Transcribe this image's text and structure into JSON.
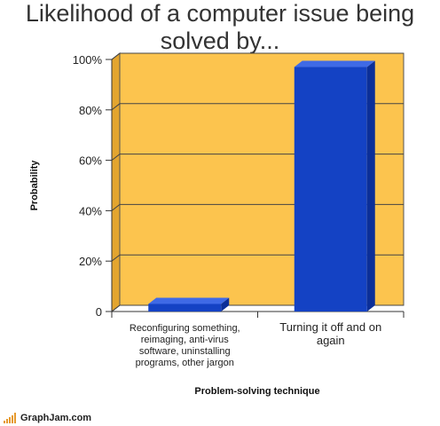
{
  "chart_data": {
    "type": "bar",
    "title_lines": [
      "Likelihood of a computer issue being",
      "solved by..."
    ],
    "xlabel": "Problem-solving technique",
    "ylabel": "Probability",
    "categories": [
      [
        "Reconfiguring something,",
        "reimaging, anti-virus",
        "software, uninstalling",
        "programs, other jargon"
      ],
      [
        "Turning it off and on",
        "again"
      ]
    ],
    "values": [
      3,
      97
    ],
    "ylim": [
      0,
      100
    ],
    "yticks": [
      {
        "value": 0,
        "label": "0"
      },
      {
        "value": 20,
        "label": "20%"
      },
      {
        "value": 40,
        "label": "40%"
      },
      {
        "value": 60,
        "label": "60%"
      },
      {
        "value": 80,
        "label": "80%"
      },
      {
        "value": 100,
        "label": "100%"
      }
    ],
    "grid": true,
    "colors": {
      "plot_bg": "#fcc44e",
      "wall_side": "#e3a52f",
      "bar_front": "#1442c4",
      "bar_top": "#3f6ae6",
      "bar_side": "#0c2f98"
    }
  },
  "footer": {
    "brand": "GraphJam.com",
    "icon": "signal-bars-icon"
  }
}
